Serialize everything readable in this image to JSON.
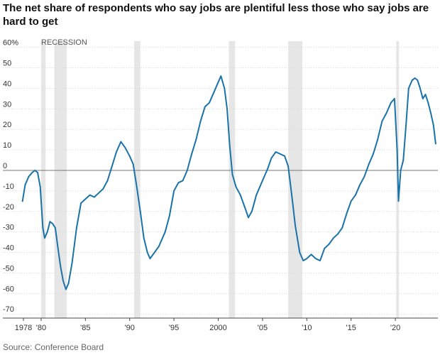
{
  "chart_data": {
    "type": "line",
    "title": "The net share of respondents who say jobs are plentiful less those who say jobs are hard to get",
    "source": "Source: Conference Board",
    "recession_annotation": "RECESSION",
    "y_tick_labels": [
      "60%",
      "50",
      "40",
      "30",
      "20",
      "10",
      "0",
      "-10",
      "-20",
      "-30",
      "-40",
      "-50",
      "-60",
      "-70"
    ],
    "y_ticks": [
      60,
      50,
      40,
      30,
      20,
      10,
      0,
      -10,
      -20,
      -30,
      -40,
      -50,
      -60,
      -70
    ],
    "x_tick_labels": [
      "1978",
      "'80",
      "'85",
      "'90",
      "'95",
      "2000",
      "'05",
      "'10",
      "'15",
      "'20"
    ],
    "x_ticks": [
      1978,
      1980,
      1985,
      1990,
      1995,
      2000,
      2005,
      2010,
      2015,
      2020
    ],
    "xlim": [
      1977.6,
      2024.8
    ],
    "ylim": [
      -72,
      63
    ],
    "grid": "horizontal",
    "zero_line": true,
    "line_color": "#1a73a8",
    "recession_color": "#e6e6e6",
    "recessions": [
      [
        1980.0,
        1980.5
      ],
      [
        1981.5,
        1982.9
      ],
      [
        1990.5,
        1991.2
      ],
      [
        2001.2,
        2001.9
      ],
      [
        2007.9,
        2009.5
      ],
      [
        2020.1,
        2020.4
      ]
    ],
    "series": [
      {
        "values": [
          [
            1977.9,
            -15
          ],
          [
            1978.2,
            -7
          ],
          [
            1978.6,
            -3
          ],
          [
            1979.0,
            -1
          ],
          [
            1979.3,
            0
          ],
          [
            1979.6,
            -1
          ],
          [
            1979.9,
            -8
          ],
          [
            1980.2,
            -28
          ],
          [
            1980.4,
            -33
          ],
          [
            1980.7,
            -30
          ],
          [
            1981.0,
            -25
          ],
          [
            1981.3,
            -26
          ],
          [
            1981.6,
            -28
          ],
          [
            1981.9,
            -38
          ],
          [
            1982.2,
            -47
          ],
          [
            1982.5,
            -54
          ],
          [
            1982.8,
            -58
          ],
          [
            1983.1,
            -55
          ],
          [
            1983.5,
            -45
          ],
          [
            1984.0,
            -28
          ],
          [
            1984.5,
            -16
          ],
          [
            1985.0,
            -14
          ],
          [
            1985.5,
            -12
          ],
          [
            1986.0,
            -13
          ],
          [
            1986.5,
            -11
          ],
          [
            1987.0,
            -9
          ],
          [
            1987.5,
            -5
          ],
          [
            1988.0,
            2
          ],
          [
            1988.5,
            9
          ],
          [
            1989.0,
            14
          ],
          [
            1989.5,
            11
          ],
          [
            1990.0,
            7
          ],
          [
            1990.4,
            3
          ],
          [
            1990.8,
            -8
          ],
          [
            1991.2,
            -20
          ],
          [
            1991.6,
            -33
          ],
          [
            1992.0,
            -40
          ],
          [
            1992.3,
            -43
          ],
          [
            1992.8,
            -40
          ],
          [
            1993.3,
            -37
          ],
          [
            1994.0,
            -30
          ],
          [
            1994.5,
            -22
          ],
          [
            1995.0,
            -10
          ],
          [
            1995.5,
            -6
          ],
          [
            1996.0,
            -5
          ],
          [
            1996.5,
            0
          ],
          [
            1997.0,
            8
          ],
          [
            1997.5,
            15
          ],
          [
            1998.0,
            24
          ],
          [
            1998.5,
            31
          ],
          [
            1999.0,
            33
          ],
          [
            1999.5,
            38
          ],
          [
            2000.0,
            43
          ],
          [
            2000.3,
            46
          ],
          [
            2000.7,
            40
          ],
          [
            2001.0,
            30
          ],
          [
            2001.3,
            12
          ],
          [
            2001.6,
            -2
          ],
          [
            2002.0,
            -8
          ],
          [
            2002.5,
            -12
          ],
          [
            2003.0,
            -18
          ],
          [
            2003.4,
            -23
          ],
          [
            2003.8,
            -20
          ],
          [
            2004.3,
            -12
          ],
          [
            2005.0,
            -5
          ],
          [
            2005.6,
            1
          ],
          [
            2006.0,
            6
          ],
          [
            2006.5,
            9
          ],
          [
            2007.0,
            8
          ],
          [
            2007.5,
            7
          ],
          [
            2007.9,
            2
          ],
          [
            2008.3,
            -12
          ],
          [
            2008.7,
            -27
          ],
          [
            2009.2,
            -40
          ],
          [
            2009.6,
            -44
          ],
          [
            2010.0,
            -43
          ],
          [
            2010.5,
            -41
          ],
          [
            2011.0,
            -43
          ],
          [
            2011.5,
            -44
          ],
          [
            2012.0,
            -38
          ],
          [
            2012.5,
            -36
          ],
          [
            2013.0,
            -33
          ],
          [
            2013.5,
            -31
          ],
          [
            2014.0,
            -28
          ],
          [
            2014.5,
            -21
          ],
          [
            2015.0,
            -15
          ],
          [
            2015.5,
            -12
          ],
          [
            2016.0,
            -7
          ],
          [
            2016.5,
            -3
          ],
          [
            2017.0,
            3
          ],
          [
            2017.5,
            8
          ],
          [
            2018.0,
            15
          ],
          [
            2018.5,
            24
          ],
          [
            2019.0,
            28
          ],
          [
            2019.5,
            33
          ],
          [
            2019.9,
            35
          ],
          [
            2020.2,
            10
          ],
          [
            2020.35,
            -15
          ],
          [
            2020.6,
            0
          ],
          [
            2020.9,
            5
          ],
          [
            2021.2,
            22
          ],
          [
            2021.5,
            40
          ],
          [
            2021.9,
            44
          ],
          [
            2022.2,
            45
          ],
          [
            2022.5,
            44
          ],
          [
            2022.8,
            40
          ],
          [
            2023.1,
            35
          ],
          [
            2023.4,
            37
          ],
          [
            2023.7,
            33
          ],
          [
            2024.0,
            28
          ],
          [
            2024.3,
            22
          ],
          [
            2024.55,
            13
          ]
        ]
      }
    ]
  }
}
